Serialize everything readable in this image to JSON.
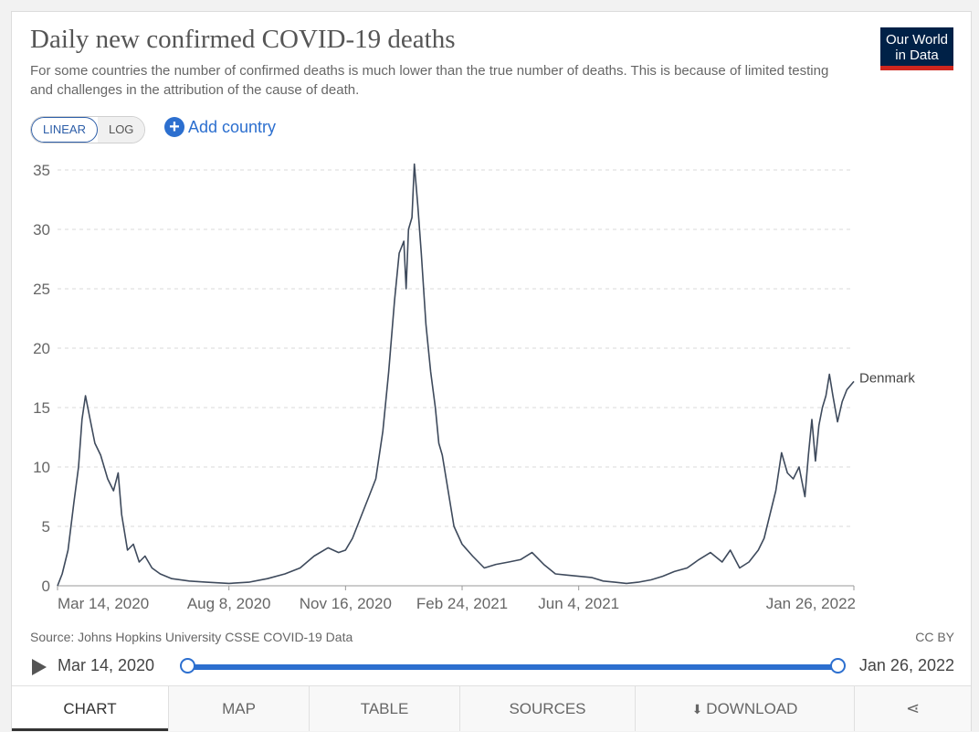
{
  "header": {
    "title": "Daily new confirmed COVID-19 deaths",
    "subtitle": "For some countries the number of confirmed deaths is much lower than the true number of deaths. This is because of limited testing and challenges in the attribution of the cause of death.",
    "logo_line1": "Our World",
    "logo_line2": "in Data"
  },
  "controls": {
    "linear_label": "LINEAR",
    "log_label": "LOG",
    "add_country_label": "Add country",
    "active_scale": "linear"
  },
  "chart_data": {
    "type": "line",
    "title": "Daily new confirmed COVID-19 deaths",
    "xlabel": "",
    "ylabel": "",
    "ylim": [
      0,
      35
    ],
    "yticks": [
      0,
      5,
      10,
      15,
      20,
      25,
      30,
      35
    ],
    "xticks": [
      {
        "date": "2020-03-14",
        "label": "Mar 14, 2020"
      },
      {
        "date": "2020-08-08",
        "label": "Aug 8, 2020"
      },
      {
        "date": "2020-11-16",
        "label": "Nov 16, 2020"
      },
      {
        "date": "2021-02-24",
        "label": "Feb 24, 2021"
      },
      {
        "date": "2021-06-04",
        "label": "Jun 4, 2021"
      },
      {
        "date": "2022-01-26",
        "label": "Jan 26, 2022"
      }
    ],
    "xlim": [
      "2020-03-14",
      "2022-01-26"
    ],
    "grid": "horizontal-dashed",
    "series": [
      {
        "name": "Denmark",
        "color": "#3e4a5c",
        "points": [
          [
            "2020-03-14",
            0
          ],
          [
            "2020-03-18",
            1
          ],
          [
            "2020-03-23",
            3
          ],
          [
            "2020-03-28",
            7
          ],
          [
            "2020-04-01",
            10
          ],
          [
            "2020-04-04",
            14
          ],
          [
            "2020-04-07",
            16
          ],
          [
            "2020-04-11",
            14
          ],
          [
            "2020-04-15",
            12
          ],
          [
            "2020-04-20",
            11
          ],
          [
            "2020-04-26",
            9
          ],
          [
            "2020-05-01",
            8
          ],
          [
            "2020-05-05",
            9.5
          ],
          [
            "2020-05-08",
            6
          ],
          [
            "2020-05-13",
            3
          ],
          [
            "2020-05-18",
            3.5
          ],
          [
            "2020-05-23",
            2
          ],
          [
            "2020-05-28",
            2.5
          ],
          [
            "2020-06-03",
            1.5
          ],
          [
            "2020-06-10",
            1
          ],
          [
            "2020-06-20",
            0.6
          ],
          [
            "2020-07-05",
            0.4
          ],
          [
            "2020-07-20",
            0.3
          ],
          [
            "2020-08-08",
            0.2
          ],
          [
            "2020-08-25",
            0.3
          ],
          [
            "2020-09-10",
            0.6
          ],
          [
            "2020-09-25",
            1
          ],
          [
            "2020-10-08",
            1.5
          ],
          [
            "2020-10-20",
            2.5
          ],
          [
            "2020-11-01",
            3.2
          ],
          [
            "2020-11-10",
            2.8
          ],
          [
            "2020-11-16",
            3
          ],
          [
            "2020-11-22",
            4
          ],
          [
            "2020-11-30",
            6
          ],
          [
            "2020-12-06",
            7.5
          ],
          [
            "2020-12-12",
            9
          ],
          [
            "2020-12-18",
            13
          ],
          [
            "2020-12-23",
            18
          ],
          [
            "2020-12-28",
            24
          ],
          [
            "2021-01-01",
            28
          ],
          [
            "2021-01-05",
            29
          ],
          [
            "2021-01-07",
            25
          ],
          [
            "2021-01-09",
            30
          ],
          [
            "2021-01-12",
            31
          ],
          [
            "2021-01-14",
            35.5
          ],
          [
            "2021-01-17",
            32
          ],
          [
            "2021-01-20",
            28
          ],
          [
            "2021-01-24",
            22
          ],
          [
            "2021-01-28",
            18
          ],
          [
            "2021-02-01",
            15
          ],
          [
            "2021-02-04",
            12
          ],
          [
            "2021-02-07",
            11
          ],
          [
            "2021-02-12",
            8
          ],
          [
            "2021-02-17",
            5
          ],
          [
            "2021-02-24",
            3.5
          ],
          [
            "2021-03-05",
            2.5
          ],
          [
            "2021-03-15",
            1.5
          ],
          [
            "2021-03-25",
            1.8
          ],
          [
            "2021-04-05",
            2
          ],
          [
            "2021-04-15",
            2.2
          ],
          [
            "2021-04-25",
            2.8
          ],
          [
            "2021-05-05",
            1.8
          ],
          [
            "2021-05-15",
            1
          ],
          [
            "2021-05-25",
            0.9
          ],
          [
            "2021-06-04",
            0.8
          ],
          [
            "2021-06-15",
            0.7
          ],
          [
            "2021-06-25",
            0.4
          ],
          [
            "2021-07-05",
            0.3
          ],
          [
            "2021-07-15",
            0.2
          ],
          [
            "2021-07-25",
            0.3
          ],
          [
            "2021-08-05",
            0.5
          ],
          [
            "2021-08-15",
            0.8
          ],
          [
            "2021-08-25",
            1.2
          ],
          [
            "2021-09-05",
            1.5
          ],
          [
            "2021-09-15",
            2.2
          ],
          [
            "2021-09-25",
            2.8
          ],
          [
            "2021-10-05",
            2
          ],
          [
            "2021-10-12",
            3
          ],
          [
            "2021-10-20",
            1.5
          ],
          [
            "2021-10-28",
            2
          ],
          [
            "2021-11-05",
            3
          ],
          [
            "2021-11-10",
            4
          ],
          [
            "2021-11-15",
            6
          ],
          [
            "2021-11-20",
            8
          ],
          [
            "2021-11-25",
            11.2
          ],
          [
            "2021-11-30",
            9.5
          ],
          [
            "2021-12-05",
            9
          ],
          [
            "2021-12-10",
            10
          ],
          [
            "2021-12-15",
            7.5
          ],
          [
            "2021-12-18",
            11
          ],
          [
            "2021-12-21",
            14
          ],
          [
            "2021-12-24",
            10.5
          ],
          [
            "2021-12-27",
            13.5
          ],
          [
            "2021-12-30",
            15
          ],
          [
            "2022-01-02",
            16
          ],
          [
            "2022-01-05",
            17.8
          ],
          [
            "2022-01-08",
            16
          ],
          [
            "2022-01-12",
            13.8
          ],
          [
            "2022-01-16",
            15.5
          ],
          [
            "2022-01-20",
            16.5
          ],
          [
            "2022-01-26",
            17.2
          ]
        ]
      }
    ]
  },
  "footer": {
    "source": "Source: Johns Hopkins University CSSE COVID-19 Data",
    "license": "CC BY"
  },
  "timeline": {
    "start_label": "Mar 14, 2020",
    "end_label": "Jan 26, 2022"
  },
  "tabs": {
    "chart": "CHART",
    "map": "MAP",
    "table": "TABLE",
    "sources": "SOURCES",
    "download": "DOWNLOAD"
  },
  "colors": {
    "accent": "#2c6fcf",
    "series": "#3e4a5c",
    "brand": "#002147",
    "brand_bar": "#ce261e"
  },
  "icons": {
    "play": "play-icon",
    "add": "plus-circle-icon",
    "download": "download-icon",
    "share": "share-icon"
  }
}
